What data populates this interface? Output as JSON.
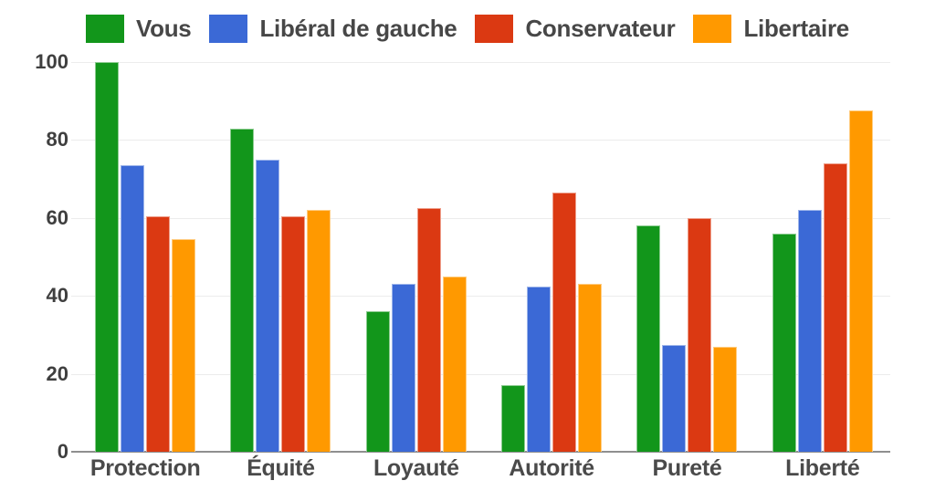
{
  "chart_data": {
    "type": "bar",
    "title": "",
    "categories": [
      "Protection",
      "Équité",
      "Loyauté",
      "Autorité",
      "Pureté",
      "Liberté"
    ],
    "series": [
      {
        "name": "Vous",
        "color": "#12961b",
        "border_color": "#8ccb90",
        "values": [
          100,
          83,
          36,
          17,
          58,
          56
        ]
      },
      {
        "name": "Libéral de gauche",
        "color": "#3b69d6",
        "border_color": "#9fb6ea",
        "values": [
          73.5,
          75,
          43,
          42.5,
          27.5,
          62
        ]
      },
      {
        "name": "Conservateur",
        "color": "#db3912",
        "border_color": "#ee9d89",
        "values": [
          60.5,
          60.5,
          62.5,
          66.5,
          60,
          74
        ]
      },
      {
        "name": "Libertaire",
        "color": "#ff9900",
        "border_color": "#ffcc80",
        "values": [
          54.5,
          62,
          45,
          43,
          27,
          87.5
        ]
      }
    ],
    "ylim": [
      0,
      100
    ],
    "yticks": [
      0,
      20,
      40,
      60,
      80,
      100
    ],
    "grid": true,
    "legend_position": "top",
    "background_color": "#ffffff",
    "gridline_color": "#ececec",
    "axis_line_color": "#8f8f8f",
    "label_color": "#474747"
  }
}
